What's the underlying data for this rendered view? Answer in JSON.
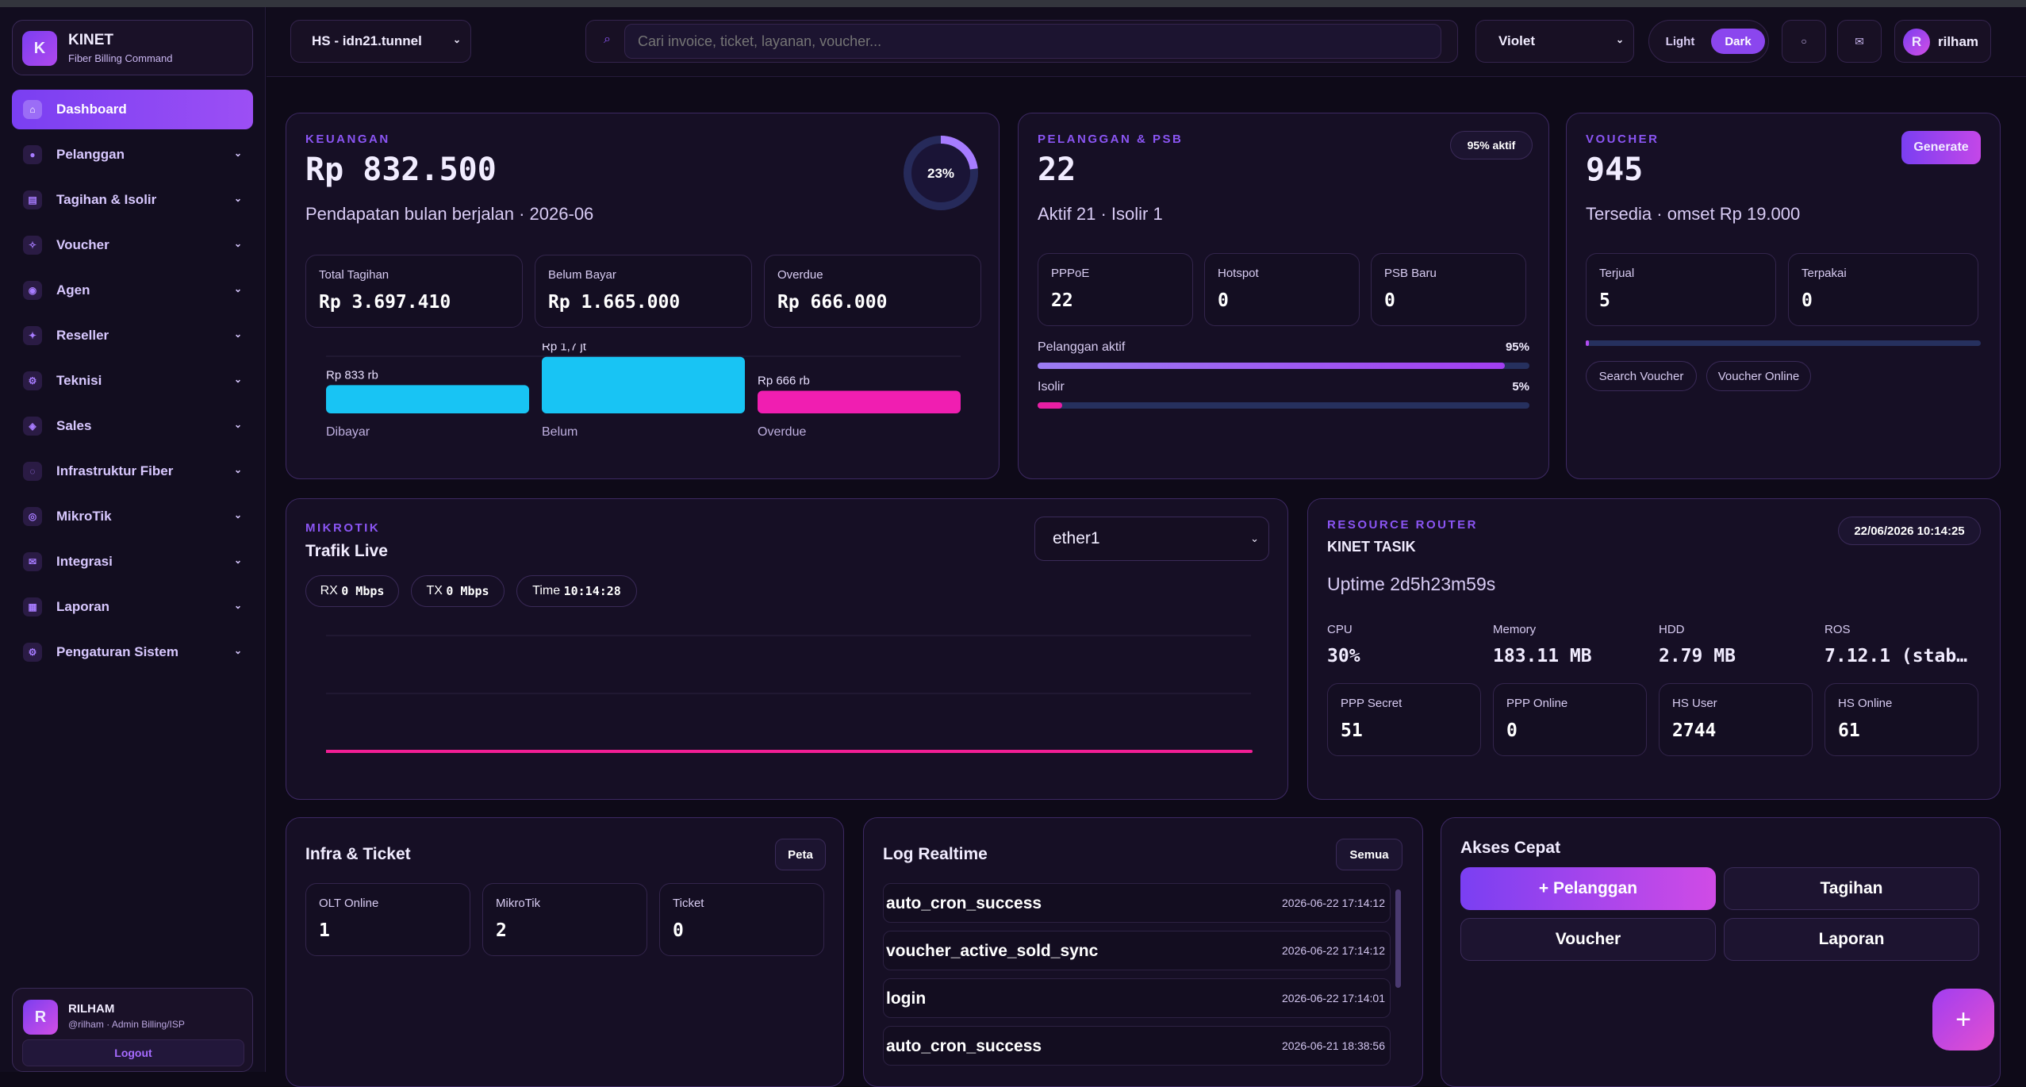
{
  "brand": {
    "logo": "K",
    "name": "KINET",
    "tagline": "Fiber Billing Command"
  },
  "nav": [
    {
      "label": "Dashboard",
      "icon": "home-icon",
      "glyph": "⌂",
      "active": true
    },
    {
      "label": "Pelanggan",
      "icon": "users-icon",
      "glyph": "●"
    },
    {
      "label": "Tagihan & Isolir",
      "icon": "invoice-icon",
      "glyph": "▤"
    },
    {
      "label": "Voucher",
      "icon": "voucher-icon",
      "glyph": "✧"
    },
    {
      "label": "Agen",
      "icon": "agent-icon",
      "glyph": "◉"
    },
    {
      "label": "Reseller",
      "icon": "reseller-icon",
      "glyph": "✦"
    },
    {
      "label": "Teknisi",
      "icon": "technician-icon",
      "glyph": "⚙"
    },
    {
      "label": "Sales",
      "icon": "sales-icon",
      "glyph": "◈"
    },
    {
      "label": "Infrastruktur Fiber",
      "icon": "fiber-icon",
      "glyph": "◌"
    },
    {
      "label": "MikroTik",
      "icon": "router-icon",
      "glyph": "◎"
    },
    {
      "label": "Integrasi",
      "icon": "integration-icon",
      "glyph": "✉"
    },
    {
      "label": "Laporan",
      "icon": "report-icon",
      "glyph": "▦"
    },
    {
      "label": "Pengaturan Sistem",
      "icon": "settings-icon",
      "glyph": "⚙"
    }
  ],
  "user": {
    "initial": "R",
    "name": "RILHAM",
    "role": "@rilham · Admin Billing/ISP",
    "logout": "Logout"
  },
  "topbar": {
    "hotspot": "HS - idn21.tunnel",
    "search_placeholder": "Cari invoice, ticket, layanan, voucher...",
    "theme": "Violet",
    "light": "Light",
    "dark": "Dark",
    "username": "rilham",
    "avatar": "R"
  },
  "keuangan": {
    "label": "KEUANGAN",
    "amount": "Rp 832.500",
    "sub": "Pendapatan bulan berjalan · 2026-06",
    "ring": "23%",
    "ring_fraction": 0.23,
    "stats": [
      {
        "k": "Total Tagihan",
        "v": "Rp 3.697.410"
      },
      {
        "k": "Belum Bayar",
        "v": "Rp 1.665.000"
      },
      {
        "k": "Overdue",
        "v": "Rp 666.000"
      }
    ]
  },
  "chart_data": {
    "type": "bar",
    "categories": [
      "Dibayar",
      "Belum",
      "Overdue"
    ],
    "values": [
      833000,
      1665000,
      666000
    ],
    "data_labels": [
      "Rp 833 rb",
      "Rp 1,7 jt",
      "Rp 666 rb"
    ],
    "colors": [
      "#18c4f4",
      "#18c4f4",
      "#f01eb1"
    ],
    "ylim": [
      0,
      1665000
    ],
    "grid": true
  },
  "pelanggan": {
    "label": "PELANGGAN & PSB",
    "badge": "95% aktif",
    "count": "22",
    "sub": "Aktif 21 · Isolir 1",
    "stats": [
      {
        "k": "PPPoE",
        "v": "22"
      },
      {
        "k": "Hotspot",
        "v": "0"
      },
      {
        "k": "PSB Baru",
        "v": "0"
      }
    ],
    "bars": [
      {
        "k": "Pelanggan aktif",
        "pct": "95%",
        "fraction": 0.95
      },
      {
        "k": "Isolir",
        "pct": "5%",
        "fraction": 0.05
      }
    ]
  },
  "voucher": {
    "label": "VOUCHER",
    "button": "Generate",
    "count": "945",
    "sub": "Tersedia · omset Rp 19.000",
    "stats": [
      {
        "k": "Terjual",
        "v": "5"
      },
      {
        "k": "Terpakai",
        "v": "0"
      }
    ],
    "progress": 0.005,
    "links": [
      "Search Voucher",
      "Voucher Online"
    ]
  },
  "mikrotik": {
    "label": "MIKROTIK",
    "title": "Trafik Live",
    "interface": "ether1",
    "rx_label": "RX",
    "rx": "0 Mbps",
    "tx_label": "TX",
    "tx": "0 Mbps",
    "time_label": "Time",
    "time": "10:14:28"
  },
  "router": {
    "label": "RESOURCE ROUTER",
    "name": "KINET TASIK",
    "date": "22/06/2026 10:14:25",
    "uptime": "Uptime 2d5h23m59s",
    "metrics": [
      {
        "k": "CPU",
        "v": "30%"
      },
      {
        "k": "Memory",
        "v": "183.11 MB"
      },
      {
        "k": "HDD",
        "v": "2.79 MB"
      },
      {
        "k": "ROS",
        "v": "7.12.1 (stab…"
      }
    ],
    "stats": [
      {
        "k": "PPP Secret",
        "v": "51"
      },
      {
        "k": "PPP Online",
        "v": "0"
      },
      {
        "k": "HS User",
        "v": "2744"
      },
      {
        "k": "HS Online",
        "v": "61"
      }
    ]
  },
  "infra": {
    "title": "Infra & Ticket",
    "button": "Peta",
    "stats": [
      {
        "k": "OLT Online",
        "v": "1"
      },
      {
        "k": "MikroTik",
        "v": "2"
      },
      {
        "k": "Ticket",
        "v": "0"
      }
    ]
  },
  "log": {
    "title": "Log Realtime",
    "button": "Semua",
    "rows": [
      {
        "e": "auto_cron_success",
        "t": "2026-06-22 17:14:12"
      },
      {
        "e": "voucher_active_sold_sync",
        "t": "2026-06-22 17:14:12"
      },
      {
        "e": "login",
        "t": "2026-06-22 17:14:01"
      },
      {
        "e": "auto_cron_success",
        "t": "2026-06-21 18:38:56"
      }
    ]
  },
  "akses": {
    "title": "Akses Cepat",
    "buttons": [
      "+ Pelanggan",
      "Tagihan",
      "Voucher",
      "Laporan"
    ],
    "fab": "+"
  }
}
